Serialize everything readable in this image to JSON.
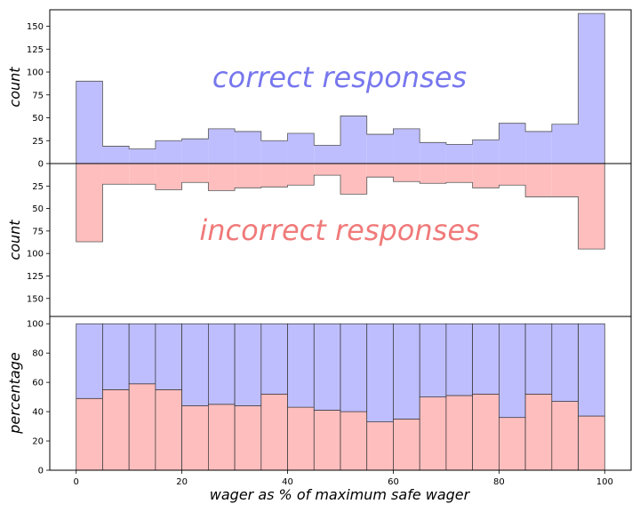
{
  "chart_data": [
    {
      "type": "bar",
      "panel": "counts",
      "x_bin_edges": [
        0,
        5,
        10,
        15,
        20,
        25,
        30,
        35,
        40,
        45,
        50,
        55,
        60,
        65,
        70,
        75,
        80,
        85,
        90,
        95,
        100
      ],
      "series": [
        {
          "name": "correct responses",
          "color": "#bebeff",
          "direction": "up",
          "values": [
            90,
            19,
            16,
            25,
            27,
            38,
            35,
            25,
            33,
            20,
            52,
            32,
            38,
            23,
            21,
            26,
            44,
            35,
            43,
            164
          ]
        },
        {
          "name": "incorrect responses",
          "color": "#ffbebe",
          "direction": "down",
          "values": [
            87,
            23,
            23,
            29,
            21,
            30,
            27,
            26,
            24,
            13,
            34,
            15,
            20,
            22,
            21,
            27,
            24,
            37,
            37,
            95
          ]
        }
      ],
      "annotations": [
        "correct responses",
        "incorrect responses"
      ],
      "upper_ylabel": "count",
      "lower_ylabel": "count",
      "ylim_upper": [
        0,
        168
      ],
      "ylim_lower": [
        0,
        170
      ],
      "yticks_upper": [
        "0",
        "25",
        "50",
        "75",
        "100",
        "125",
        "150"
      ],
      "yticks_lower": [
        "25",
        "50",
        "75",
        "100",
        "125",
        "150"
      ],
      "annotation_colors": {
        "correct": "#7777ee",
        "incorrect": "#f07a7a"
      }
    },
    {
      "type": "bar",
      "panel": "percentage",
      "stacked": true,
      "x_bin_edges": [
        0,
        5,
        10,
        15,
        20,
        25,
        30,
        35,
        40,
        45,
        50,
        55,
        60,
        65,
        70,
        75,
        80,
        85,
        90,
        95,
        100
      ],
      "series": [
        {
          "name": "incorrect",
          "color": "#ffbebe",
          "values": [
            49,
            55,
            59,
            55,
            44,
            45,
            44,
            52,
            43,
            41,
            40,
            33,
            35,
            50,
            51,
            52,
            36,
            52,
            47,
            37
          ]
        },
        {
          "name": "correct",
          "color": "#bebeff",
          "values": [
            51,
            45,
            41,
            45,
            56,
            55,
            56,
            48,
            57,
            59,
            60,
            67,
            65,
            50,
            49,
            48,
            64,
            48,
            53,
            63
          ]
        }
      ],
      "ylabel": "percentage",
      "ylim": [
        0,
        105
      ],
      "yticks": [
        "0",
        "20",
        "40",
        "60",
        "80",
        "100"
      ],
      "xlabel": "wager as % of maximum safe wager",
      "xticks": [
        "0",
        "20",
        "40",
        "60",
        "80",
        "100"
      ],
      "xlim": [
        -5,
        105
      ]
    }
  ]
}
